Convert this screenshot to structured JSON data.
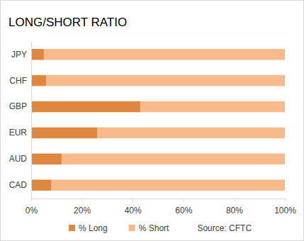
{
  "chart_data": {
    "type": "bar",
    "title": "LONG/SHORT RATIO",
    "orientation": "horizontal",
    "stacked": true,
    "categories": [
      "JPY",
      "CHF",
      "GBP",
      "EUR",
      "AUD",
      "CAD"
    ],
    "series": [
      {
        "name": "% Long",
        "color": "#e0873f",
        "values": [
          5,
          6,
          43,
          26,
          12,
          8
        ]
      },
      {
        "name": "% Short",
        "color": "#f9ba8b",
        "values": [
          95,
          94,
          57,
          74,
          88,
          92
        ]
      }
    ],
    "xlim": [
      0,
      100
    ],
    "xticks": [
      {
        "value": 0,
        "label": "0%"
      },
      {
        "value": 20,
        "label": "20%"
      },
      {
        "value": 40,
        "label": "40%"
      },
      {
        "value": 60,
        "label": "60%"
      },
      {
        "value": 80,
        "label": "80%"
      },
      {
        "value": 100,
        "label": "100%"
      }
    ],
    "grid": false,
    "legend": "bottom",
    "annotations": [
      "Source: CFTC"
    ]
  }
}
